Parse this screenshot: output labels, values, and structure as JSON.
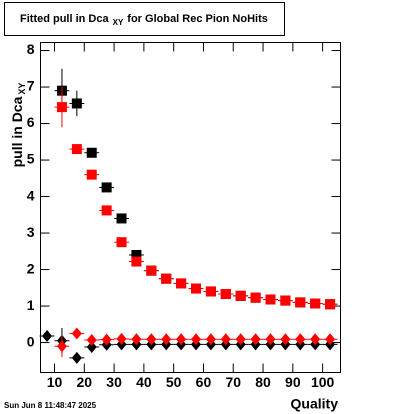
{
  "chart_data": {
    "type": "scatter",
    "title": "Fitted pull in Dca",
    "title_subscript": "XY",
    "title_rest": "for Global Rec Pion NoHits",
    "y_label": "pull in Dca",
    "y_label_subscript": "XY",
    "x_label": "Quality",
    "footer": "Sun Jun  8 11:48:47 2025",
    "x": [
      7.5,
      12.5,
      17.5,
      22.5,
      27.5,
      32.5,
      37.5,
      42.5,
      47.5,
      52.5,
      57.5,
      62.5,
      67.5,
      72.5,
      77.5,
      82.5,
      87.5,
      92.5,
      97.5,
      102.5
    ],
    "xlim": [
      5.3,
      106
    ],
    "ylim": [
      -0.82,
      8.22
    ],
    "xticks": [
      10,
      20,
      30,
      40,
      50,
      60,
      70,
      80,
      90,
      100
    ],
    "yticks": [
      0,
      1,
      2,
      3,
      4,
      5,
      6,
      7,
      8
    ],
    "series": [
      {
        "color": "#000000",
        "marker": "square",
        "values": [
          null,
          6.9,
          6.55,
          5.2,
          4.25,
          3.4,
          2.4,
          1.97,
          1.75,
          1.62,
          1.48,
          1.4,
          1.33,
          1.28,
          1.23,
          1.18,
          1.15,
          1.1,
          1.07,
          1.05
        ],
        "errors": [
          null,
          0.6,
          0.35,
          0.08,
          0.08,
          0.07,
          0.06,
          0.05,
          0.05,
          0.05,
          0.05,
          0.05,
          0.05,
          0.05,
          0.05,
          0.05,
          0.05,
          0.05,
          0.05,
          0.05
        ]
      },
      {
        "color": "#ff0000",
        "marker": "square",
        "values": [
          null,
          6.45,
          5.3,
          4.6,
          3.62,
          2.75,
          2.22,
          1.97,
          1.75,
          1.62,
          1.48,
          1.4,
          1.33,
          1.28,
          1.23,
          1.18,
          1.15,
          1.1,
          1.07,
          1.05
        ],
        "errors": [
          null,
          0.55,
          0.12,
          0.07,
          0.06,
          0.06,
          0.05,
          0.05,
          0.05,
          0.05,
          0.05,
          0.05,
          0.05,
          0.05,
          0.05,
          0.05,
          0.05,
          0.05,
          0.05,
          0.05
        ]
      },
      {
        "color": "#000000",
        "marker": "diamond",
        "values": [
          0.18,
          0.05,
          -0.42,
          -0.12,
          -0.06,
          -0.05,
          -0.05,
          -0.05,
          -0.05,
          -0.05,
          -0.05,
          -0.05,
          -0.05,
          -0.05,
          -0.05,
          -0.05,
          -0.05,
          -0.05,
          -0.05,
          -0.05
        ],
        "errors": [
          0.12,
          0.35,
          0.15,
          0.05,
          0.04,
          0.04,
          0.04,
          0.04,
          0.04,
          0.04,
          0.04,
          0.04,
          0.04,
          0.04,
          0.04,
          0.04,
          0.04,
          0.04,
          0.04,
          0.04
        ]
      },
      {
        "color": "#ff0000",
        "marker": "diamond",
        "values": [
          null,
          -0.1,
          0.25,
          0.07,
          0.08,
          0.1,
          0.09,
          0.09,
          0.09,
          0.09,
          0.09,
          0.09,
          0.09,
          0.09,
          0.09,
          0.09,
          0.09,
          0.09,
          0.09,
          0.09
        ],
        "errors": [
          null,
          0.3,
          0.1,
          0.04,
          0.04,
          0.04,
          0.04,
          0.04,
          0.04,
          0.04,
          0.04,
          0.04,
          0.04,
          0.04,
          0.04,
          0.04,
          0.04,
          0.04,
          0.04,
          0.04
        ]
      }
    ]
  }
}
